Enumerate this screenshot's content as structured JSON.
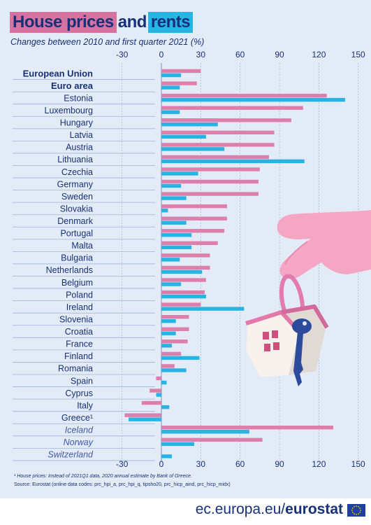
{
  "title": {
    "part1": "House prices",
    "part2": "and",
    "part3": "rents"
  },
  "subtitle": "Changes between 2010 and first quarter 2021 (%)",
  "footnote": "¹ House prices: Instead of 2021Q1 data, 2020 annual estimate by Bank of Greece.",
  "source": "Source: Eurostat (online data codes: prc_hpi_a, prc_hpi_q, tipsho20, prc_hicp_aind, prc_hicp_midx)",
  "brand": {
    "domain": "ec.europa.eu/",
    "name": "eurostat"
  },
  "colors": {
    "house_prices": "#de7fab",
    "rents": "#29b3e3",
    "text": "#16317a",
    "background": "#e3ebf7"
  },
  "chart_data": {
    "type": "bar",
    "orientation": "horizontal",
    "xlim": [
      -30,
      150
    ],
    "xticks": [
      -30,
      0,
      30,
      60,
      90,
      120,
      150
    ],
    "grid": true,
    "categories": [
      "European Union",
      "Euro area",
      "Estonia",
      "Luxembourg",
      "Hungary",
      "Latvia",
      "Austria",
      "Lithuania",
      "Czechia",
      "Germany",
      "Sweden",
      "Slovakia",
      "Denmark",
      "Portugal",
      "Malta",
      "Bulgaria",
      "Netherlands",
      "Belgium",
      "Poland",
      "Ireland",
      "Slovenia",
      "Croatia",
      "France",
      "Finland",
      "Romania",
      "Spain",
      "Cyprus",
      "Italy",
      "Greece¹",
      "Iceland",
      "Norway",
      "Switzerland"
    ],
    "category_style": [
      "bold",
      "bold",
      "",
      "",
      "",
      "",
      "",
      "",
      "",
      "",
      "",
      "",
      "",
      "",
      "",
      "",
      "",
      "",
      "",
      "",
      "",
      "",
      "",
      "",
      "",
      "",
      "",
      "",
      "",
      "efta",
      "efta",
      "efta"
    ],
    "series": [
      {
        "key": "house_prices",
        "values": [
          30,
          27,
          126,
          108,
          99,
          86,
          86,
          82,
          75,
          74,
          74,
          50,
          50,
          48,
          43,
          37,
          37,
          34,
          33,
          30,
          21,
          21,
          20,
          15,
          10,
          -4,
          -9,
          -15,
          -28,
          131,
          77,
          null
        ]
      },
      {
        "key": "rents",
        "values": [
          15,
          14,
          140,
          14,
          43,
          34,
          48,
          109,
          28,
          15,
          19,
          5,
          19,
          23,
          23,
          14,
          31,
          15,
          34,
          63,
          11,
          11,
          8,
          29,
          19,
          4,
          -4,
          6,
          -25,
          67,
          25,
          8
        ]
      }
    ]
  }
}
